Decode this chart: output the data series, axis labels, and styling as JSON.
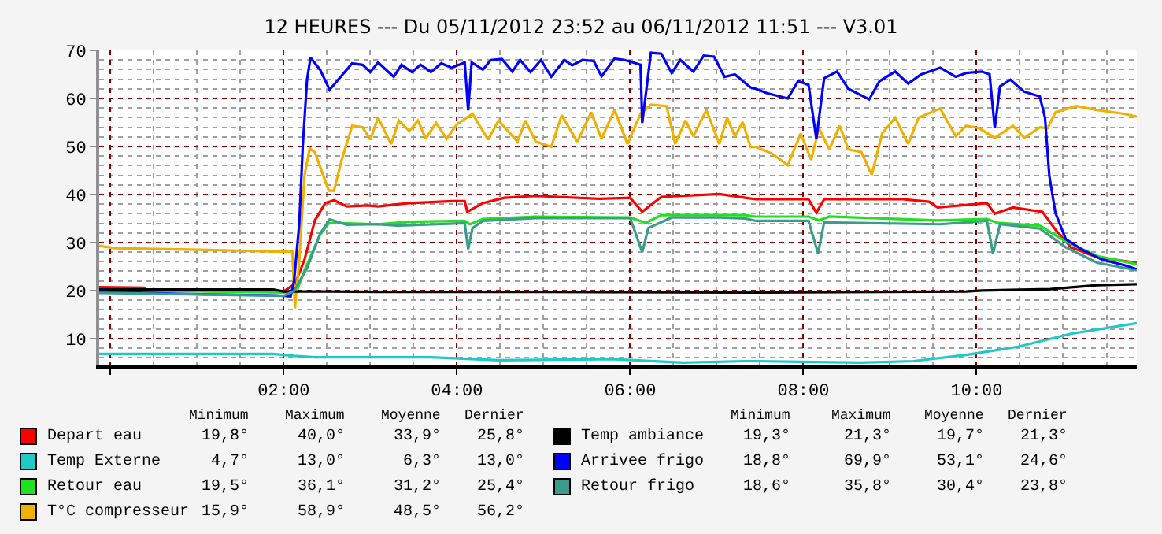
{
  "chart_data": {
    "type": "line",
    "title": "12 HEURES --- Du 05/11/2012 23:52 au 06/11/2012 11:51 --- V3.01",
    "xlim": [
      -0.13,
      11.85
    ],
    "xticks": [
      {
        "value": 0,
        "label": null
      },
      {
        "value": 2,
        "label": "02:00"
      },
      {
        "value": 4,
        "label": "04:00"
      },
      {
        "value": 6,
        "label": "06:00"
      },
      {
        "value": 8,
        "label": "08:00"
      },
      {
        "value": 10,
        "label": "10:00"
      }
    ],
    "ylim": [
      4.4,
      70
    ],
    "yticks": [
      10,
      20,
      30,
      40,
      50,
      60,
      70
    ],
    "grid": true,
    "legend": "bottom",
    "series": [
      {
        "name": "Depart eau",
        "color": "#ff0000",
        "x": [
          -0.13,
          0.39,
          0.42,
          2.0,
          2.13,
          2.24,
          2.36,
          2.48,
          2.58,
          2.73,
          2.97,
          3.09,
          3.45,
          3.94,
          4.09,
          4.12,
          4.3,
          4.55,
          4.91,
          5.64,
          6.0,
          6.14,
          6.36,
          7.03,
          7.33,
          7.45,
          8.06,
          8.15,
          8.24,
          8.67,
          9.15,
          9.45,
          9.55,
          10.12,
          10.21,
          10.42,
          10.76,
          10.91,
          11.09,
          11.39,
          11.85
        ],
        "values": [
          20.7,
          20.6,
          20.0,
          19.8,
          21.4,
          26.4,
          34.6,
          38.2,
          38.8,
          37.5,
          37.7,
          37.5,
          38.2,
          38.6,
          38.6,
          36.4,
          38.2,
          39.3,
          39.7,
          39.1,
          39.3,
          36.4,
          39.5,
          40.1,
          39.3,
          39.0,
          39.0,
          36.2,
          39.0,
          39.0,
          39.0,
          38.5,
          37.3,
          38.2,
          36.0,
          37.3,
          36.4,
          32.7,
          29.0,
          26.9,
          25.8
        ]
      },
      {
        "name": "Temp Externe",
        "color": "#20c8c8",
        "x": [
          -0.13,
          1.88,
          2.12,
          2.36,
          3.09,
          3.7,
          4.48,
          5.82,
          6.61,
          7.33,
          7.45,
          8.67,
          9.27,
          9.88,
          10.48,
          11.09,
          11.85
        ],
        "values": [
          6.8,
          6.8,
          6.4,
          6.1,
          6.1,
          6.1,
          5.5,
          5.7,
          5.0,
          5.3,
          5.3,
          5.0,
          5.3,
          6.6,
          8.3,
          11.0,
          13.2
        ]
      },
      {
        "name": "Retour eau",
        "color": "#20e020",
        "x": [
          -0.13,
          2.0,
          2.15,
          2.24,
          2.42,
          2.52,
          2.73,
          3.09,
          3.45,
          4.09,
          4.15,
          4.3,
          4.91,
          6.0,
          6.18,
          6.36,
          7.33,
          7.45,
          8.06,
          8.18,
          8.3,
          9.55,
          10.12,
          10.24,
          10.73,
          11.03,
          11.39,
          11.85
        ],
        "values": [
          20.1,
          19.6,
          19.8,
          24.2,
          31.6,
          34.0,
          34.0,
          33.8,
          34.3,
          34.5,
          33.8,
          34.9,
          35.4,
          35.2,
          34.1,
          35.7,
          35.7,
          35.4,
          35.4,
          34.6,
          35.4,
          34.6,
          34.9,
          34.1,
          33.5,
          30.2,
          27.2,
          25.5
        ]
      },
      {
        "name": "T°C compresseur",
        "color": "#f0b000",
        "x": [
          -0.13,
          0.06,
          1.03,
          1.94,
          2.1,
          2.13,
          2.18,
          2.24,
          2.3,
          2.36,
          2.52,
          2.58,
          2.67,
          2.79,
          2.91,
          3.0,
          3.09,
          3.24,
          3.33,
          3.45,
          3.55,
          3.64,
          3.76,
          3.88,
          4.0,
          4.18,
          4.36,
          4.48,
          4.7,
          4.79,
          4.91,
          5.09,
          5.21,
          5.39,
          5.55,
          5.67,
          5.82,
          5.97,
          6.12,
          6.24,
          6.42,
          6.52,
          6.64,
          6.73,
          6.88,
          7.03,
          7.12,
          7.21,
          7.3,
          7.39,
          7.45,
          7.64,
          7.82,
          7.97,
          8.09,
          8.18,
          8.3,
          8.42,
          8.52,
          8.67,
          8.79,
          8.91,
          9.06,
          9.21,
          9.33,
          9.58,
          9.76,
          9.88,
          10.03,
          10.21,
          10.42,
          10.55,
          10.73,
          10.82,
          10.91,
          11.15,
          11.39,
          11.7,
          11.85
        ],
        "values": [
          29.3,
          28.8,
          28.5,
          28.1,
          28.1,
          16.3,
          26.4,
          43.9,
          49.6,
          48.8,
          40.8,
          40.8,
          47.2,
          54.3,
          54.0,
          51.4,
          56.0,
          50.5,
          55.4,
          53.2,
          55.4,
          51.6,
          54.9,
          51.6,
          54.6,
          56.8,
          51.4,
          55.4,
          51.0,
          55.4,
          51.0,
          49.9,
          56.5,
          51.0,
          57.1,
          51.6,
          57.6,
          50.5,
          56.8,
          58.7,
          58.4,
          50.5,
          55.4,
          52.1,
          57.6,
          50.5,
          56.0,
          52.1,
          55.1,
          49.9,
          49.9,
          48.5,
          46.1,
          52.7,
          47.2,
          53.8,
          49.4,
          54.3,
          49.4,
          48.8,
          44.1,
          52.7,
          56.0,
          50.5,
          56.0,
          57.9,
          52.1,
          54.3,
          53.8,
          51.8,
          54.3,
          51.8,
          54.0,
          53.8,
          57.1,
          58.4,
          57.6,
          56.8,
          56.2
        ]
      },
      {
        "name": "Temp ambiance",
        "color": "#000000",
        "x": [
          -0.13,
          0.18,
          1.88,
          2.0,
          2.55,
          3.09,
          5.0,
          7.45,
          9.88,
          10.06,
          10.85,
          11.39,
          11.85
        ],
        "values": [
          20.2,
          20.2,
          20.2,
          19.8,
          19.8,
          19.7,
          19.7,
          19.6,
          19.8,
          20.0,
          20.3,
          21.1,
          21.3
        ]
      },
      {
        "name": "Arrivee frigo",
        "color": "#0000ff",
        "x": [
          -0.13,
          0.8,
          1.9,
          2.08,
          2.12,
          2.18,
          2.22,
          2.27,
          2.31,
          2.42,
          2.53,
          2.79,
          2.91,
          3.0,
          3.09,
          3.27,
          3.36,
          3.48,
          3.58,
          3.7,
          3.82,
          3.94,
          4.09,
          4.13,
          4.17,
          4.3,
          4.39,
          4.52,
          4.64,
          4.73,
          4.85,
          4.97,
          5.09,
          5.24,
          5.33,
          5.45,
          5.58,
          5.67,
          5.82,
          5.94,
          6.12,
          6.14,
          6.24,
          6.36,
          6.48,
          6.58,
          6.73,
          6.85,
          6.97,
          7.09,
          7.21,
          7.39,
          7.45,
          7.58,
          7.82,
          7.94,
          8.06,
          8.15,
          8.21,
          8.24,
          8.39,
          8.52,
          8.76,
          8.88,
          9.06,
          9.21,
          9.36,
          9.58,
          9.76,
          9.88,
          10.06,
          10.15,
          10.21,
          10.27,
          10.39,
          10.55,
          10.73,
          10.79,
          10.84,
          10.91,
          11.03,
          11.21,
          11.45,
          11.7,
          11.85
        ],
        "values": [
          19.8,
          19.3,
          19.0,
          18.8,
          22.0,
          34.0,
          50.0,
          64.0,
          68.5,
          66.0,
          61.8,
          67.3,
          67.0,
          65.5,
          67.5,
          64.5,
          67.0,
          65.5,
          67.0,
          65.5,
          67.3,
          66.4,
          67.5,
          57.5,
          67.5,
          66.0,
          68.0,
          68.2,
          65.6,
          68.0,
          65.5,
          68.0,
          64.5,
          68.0,
          66.9,
          68.0,
          67.8,
          64.6,
          68.3,
          68.0,
          67.0,
          54.9,
          69.5,
          69.3,
          65.3,
          68.0,
          65.6,
          68.9,
          68.7,
          64.5,
          65.0,
          62.3,
          62.0,
          61.1,
          60.0,
          63.6,
          62.8,
          51.6,
          60.0,
          64.2,
          65.6,
          62.0,
          59.8,
          63.6,
          65.6,
          63.1,
          65.0,
          66.4,
          64.5,
          65.3,
          65.6,
          65.0,
          53.8,
          62.5,
          63.9,
          61.4,
          60.4,
          56.0,
          43.9,
          36.2,
          30.7,
          28.6,
          26.4,
          25.3,
          24.4
        ]
      },
      {
        "name": "Retour frigo",
        "color": "#3c9c8c",
        "x": [
          -0.13,
          2.0,
          2.12,
          2.27,
          2.42,
          2.53,
          2.73,
          3.09,
          3.33,
          4.09,
          4.13,
          4.18,
          4.3,
          4.91,
          6.0,
          6.14,
          6.21,
          6.48,
          7.03,
          7.33,
          7.45,
          8.06,
          8.17,
          8.24,
          9.58,
          10.12,
          10.19,
          10.27,
          10.73,
          11.03,
          11.39,
          11.85
        ],
        "values": [
          19.5,
          18.9,
          19.9,
          24.7,
          31.8,
          34.8,
          33.7,
          33.8,
          33.5,
          34.0,
          28.6,
          33.0,
          34.5,
          35.1,
          35.1,
          28.0,
          33.0,
          35.2,
          35.2,
          35.0,
          34.5,
          34.5,
          27.7,
          34.2,
          33.8,
          34.5,
          27.7,
          33.8,
          32.9,
          29.0,
          25.8,
          24.2
        ]
      }
    ],
    "annotations": [
      "Minimum",
      "Maximum",
      "Moyenne",
      "Dernier",
      "19,8°",
      "40,0°",
      "33,9°",
      "25,8°",
      "4,7°",
      "13,0°",
      "6,3°",
      "13,0°",
      "19,5°",
      "36,1°",
      "31,2°",
      "25,4°",
      "15,9°",
      "58,9°",
      "48,5°",
      "56,2°",
      "19,3°",
      "21,3°",
      "19,7°",
      "21,3°",
      "18,8°",
      "69,9°",
      "53,1°",
      "24,6°",
      "18,6°",
      "35,8°",
      "30,4°",
      "23,8°"
    ]
  }
}
